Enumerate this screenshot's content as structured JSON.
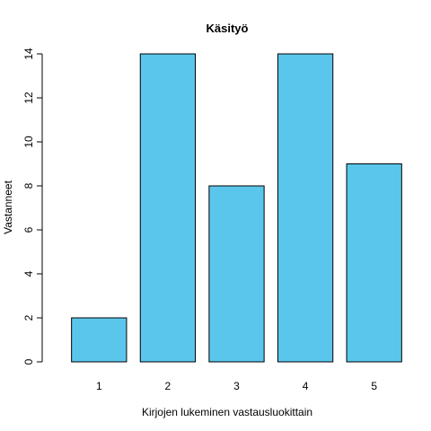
{
  "chart_data": {
    "type": "bar",
    "title": "Käsityö",
    "xlabel": "Kirjojen lukeminen vastausluokittain",
    "ylabel": "Vastanneet",
    "categories": [
      "1",
      "2",
      "3",
      "4",
      "5"
    ],
    "values": [
      2,
      14,
      8,
      14,
      9
    ],
    "ylim": [
      0,
      14
    ],
    "yticks": [
      0,
      2,
      4,
      6,
      8,
      10,
      12,
      14
    ],
    "bar_color": "#5BC6EC",
    "bar_border_color": "#000000",
    "grid": false,
    "legend": "none"
  }
}
